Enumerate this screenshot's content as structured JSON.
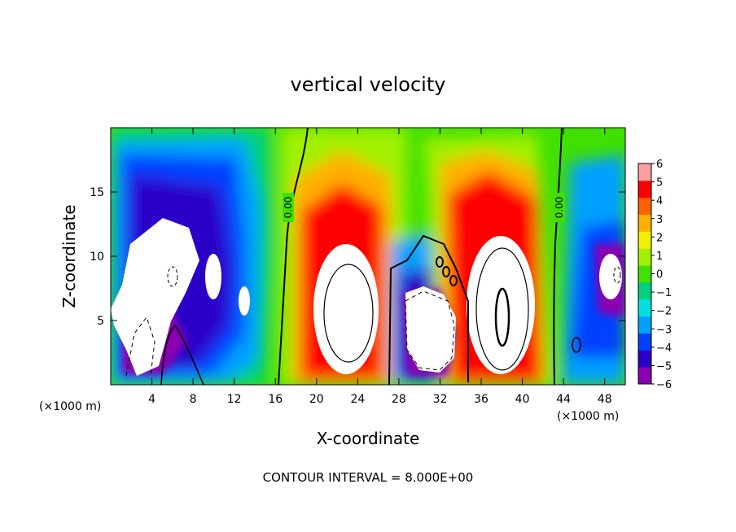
{
  "chart_data": {
    "type": "heatmap",
    "title": "vertical velocity",
    "xlabel": "X-coordinate",
    "ylabel": "Z-coordinate",
    "x_unit": "(×1000 m)",
    "x_unit_right": "(×1000 m)",
    "xlim": [
      0,
      50
    ],
    "ylim": [
      0,
      20
    ],
    "x_ticks": [
      4,
      8,
      12,
      16,
      20,
      24,
      28,
      32,
      36,
      40,
      44,
      48
    ],
    "x_tick_labels": [
      "4",
      "8",
      "12",
      "16",
      "20",
      "24",
      "28",
      "32",
      "36",
      "40",
      "44",
      "48"
    ],
    "y_ticks": [
      5,
      10,
      15
    ],
    "y_tick_labels": [
      "5",
      "10",
      "15"
    ],
    "colorbar": {
      "min": -6,
      "max": 6,
      "ticks": [
        6,
        5,
        4,
        3,
        2,
        1,
        0,
        -1,
        -2,
        -3,
        -4,
        -5,
        -6
      ],
      "tick_labels": [
        "6",
        "5",
        "4",
        "3",
        "2",
        "1",
        "0",
        "−1",
        "−2",
        "−3",
        "−4",
        "−5",
        "−6"
      ],
      "colors": [
        "#8a00b0",
        "#2a00c8",
        "#0040ff",
        "#00a0ff",
        "#00e0e0",
        "#00d080",
        "#40e000",
        "#a0f000",
        "#f0f000",
        "#ffb000",
        "#ff6000",
        "#ff0000",
        "#ffa0a0"
      ]
    },
    "features": [
      {
        "kind": "downdraft",
        "x_center": 8,
        "x_range": [
          0,
          15
        ],
        "z_range": [
          0,
          18
        ],
        "value": -6
      },
      {
        "kind": "updraft",
        "x_center": 23,
        "x_range": [
          16,
          27
        ],
        "z_range": [
          0,
          17
        ],
        "value": 6
      },
      {
        "kind": "downdraft",
        "x_center": 31,
        "x_range": [
          27,
          35
        ],
        "z_range": [
          0,
          12
        ],
        "value": -6
      },
      {
        "kind": "updraft",
        "x_center": 38,
        "x_range": [
          34,
          43
        ],
        "z_range": [
          0,
          17
        ],
        "value": 6
      },
      {
        "kind": "downdraft",
        "x_center": 48,
        "x_range": [
          44,
          50
        ],
        "z_range": [
          0,
          13
        ],
        "value": -6
      }
    ],
    "contour_labels": [
      "0.00",
      "0.00"
    ],
    "annotation": "CONTOUR INTERVAL = 8.000E+00"
  }
}
